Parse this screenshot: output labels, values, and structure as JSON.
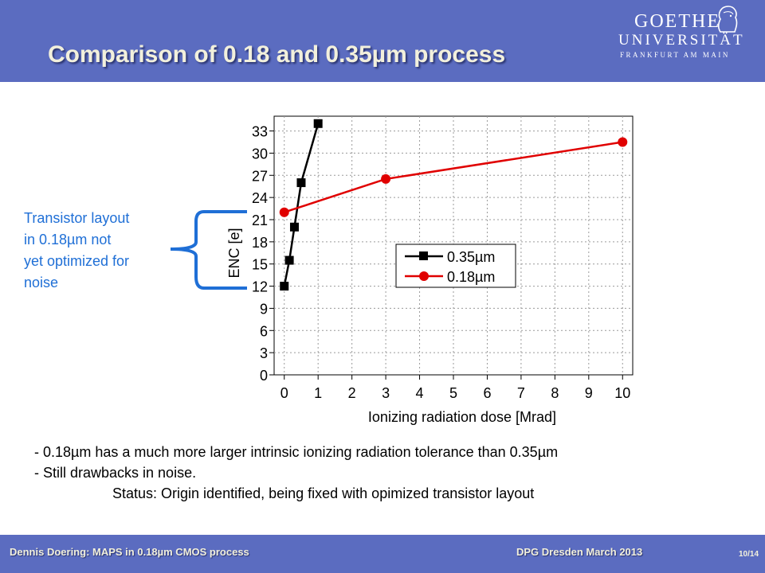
{
  "slide": {
    "title": "Comparison of 0.18 and 0.35µm process",
    "logo": {
      "line1": "GOETHE",
      "line2": "UNIVERSITÄT",
      "line3": "FRANKFURT AM MAIN",
      "icon": "goethe-bust-icon"
    },
    "annotation": [
      "Transistor layout",
      "in 0.18µm not",
      "yet optimized for",
      "noise"
    ],
    "bullets": [
      "- 0.18µm has a much more larger intrinsic ionizing radiation tolerance than 0.35µm",
      "- Still drawbacks in noise.",
      "Status: Origin identified, being fixed with opimized transistor layout"
    ],
    "footer": {
      "left": "Dennis Doering: MAPS in 0.18µm CMOS process",
      "middle": "DPG Dresden March 2013",
      "page": "10/14"
    },
    "colors": {
      "band": "#5b6cc0",
      "title_text": "#f2f0dc",
      "annotation": "#1f6fd6",
      "series_035": "#000000",
      "series_018": "#e00000"
    }
  },
  "chart_data": {
    "type": "line",
    "xlabel": "Ionizing radiation dose [Mrad]",
    "ylabel": "ENC [e]",
    "xlim": [
      -0.3,
      10.3
    ],
    "ylim": [
      0,
      35
    ],
    "xticks": [
      0,
      1,
      2,
      3,
      4,
      5,
      6,
      7,
      8,
      9,
      10
    ],
    "yticks": [
      0,
      3,
      6,
      9,
      12,
      15,
      18,
      21,
      24,
      27,
      30,
      33
    ],
    "grid": true,
    "legend_position": "middle-right",
    "series": [
      {
        "name": "0.35µm",
        "color": "#000000",
        "marker": "square",
        "x": [
          0,
          0.15,
          0.3,
          0.5,
          1
        ],
        "y": [
          12,
          15.5,
          20,
          26,
          34
        ]
      },
      {
        "name": "0.18µm",
        "color": "#e00000",
        "marker": "circle",
        "x": [
          0,
          3,
          10
        ],
        "y": [
          22,
          26.5,
          31.5
        ]
      }
    ]
  }
}
